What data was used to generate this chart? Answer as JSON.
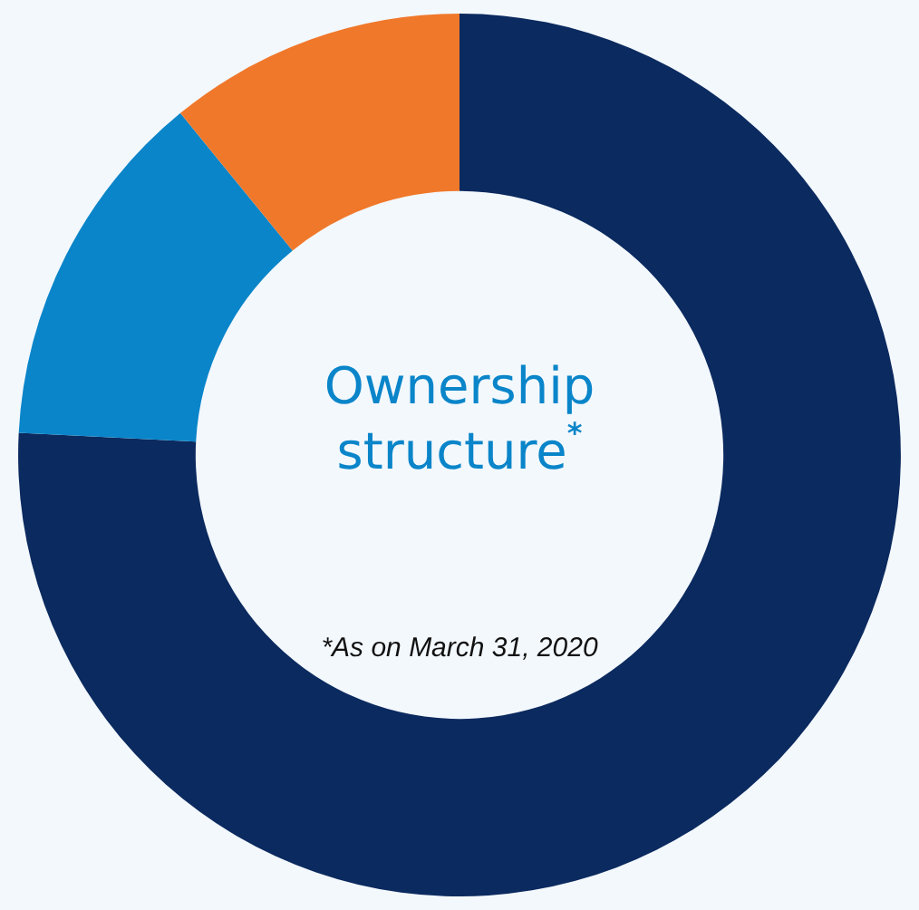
{
  "chart_data": {
    "type": "donut",
    "title": "Ownership structure$^{*}$",
    "annotations": [
      "*As on March 31, 2020"
    ],
    "categories": [
      null,
      null,
      null
    ],
    "values": [
      75.8,
      13.3,
      10.9
    ],
    "colors": [
      "#0b2a5f",
      "#0a85c9",
      "#f0782a"
    ]
  }
}
